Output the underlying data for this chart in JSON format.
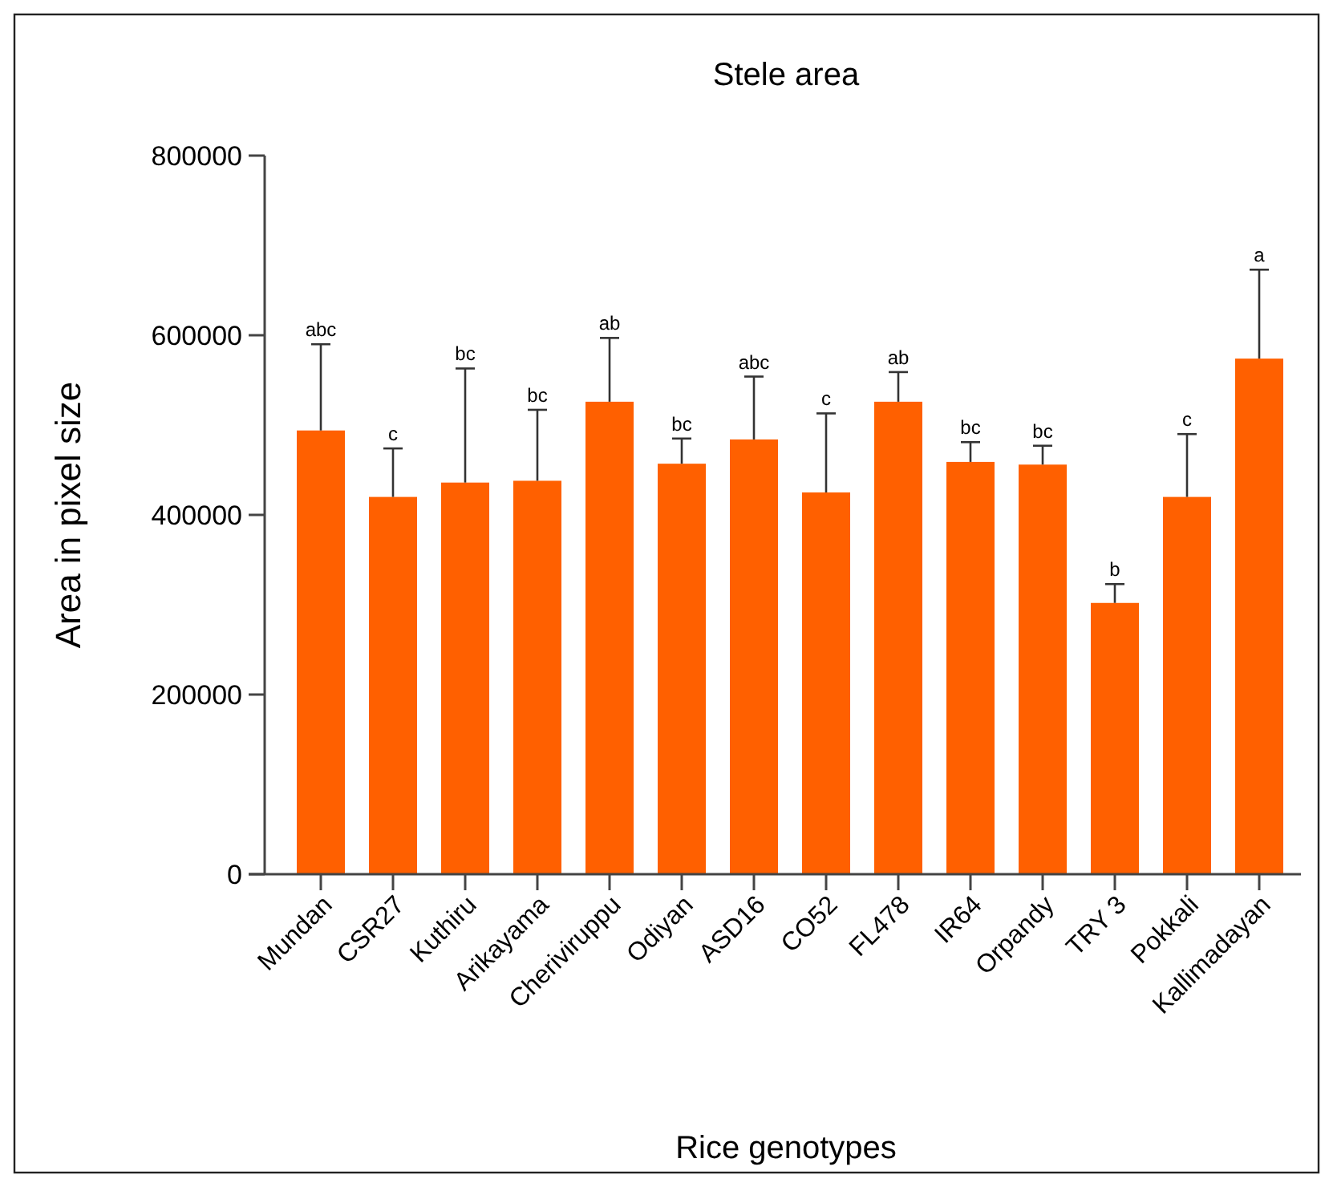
{
  "chart_data": {
    "type": "bar",
    "title": "Stele area",
    "xlabel": "Rice genotypes",
    "ylabel": "Area in pixel size",
    "categories": [
      "Mundan",
      "CSR27",
      "Kuthiru",
      "Arikayama",
      "Cheriviruppu",
      "Odiyan",
      "ASD16",
      "CO52",
      "FL478",
      "IR64",
      "Orpandy",
      "TRY 3",
      "Pokkali",
      "Kallimadayan"
    ],
    "values": [
      494000,
      420000,
      436000,
      438000,
      526000,
      457000,
      484000,
      425000,
      526000,
      459000,
      456000,
      302000,
      420000,
      574000
    ],
    "errors": [
      [
        494000,
        590000
      ],
      [
        420000,
        474000
      ],
      [
        436000,
        563000
      ],
      [
        438000,
        517000
      ],
      [
        526000,
        597000
      ],
      [
        457000,
        485000
      ],
      [
        484000,
        554000
      ],
      [
        425000,
        513000
      ],
      [
        526000,
        559000
      ],
      [
        459000,
        481000
      ],
      [
        456000,
        477000
      ],
      [
        302000,
        323000
      ],
      [
        420000,
        490000
      ],
      [
        574000,
        673000
      ]
    ],
    "color": "#ff6000",
    "ylim": [
      0,
      800000
    ],
    "yticks": [
      0,
      200000,
      400000,
      600000,
      800000
    ],
    "annotations": [
      {
        "text": "abc",
        "x": "Mundan",
        "y": 590000
      },
      {
        "text": "c",
        "x": "CSR27",
        "y": 474000
      },
      {
        "text": "bc",
        "x": "Kuthiru",
        "y": 563000
      },
      {
        "text": "bc",
        "x": "Arikayama",
        "y": 517000
      },
      {
        "text": "ab",
        "x": "Cheriviruppu",
        "y": 597000
      },
      {
        "text": "bc",
        "x": "Odiyan",
        "y": 485000
      },
      {
        "text": "abc",
        "x": "ASD16",
        "y": 554000
      },
      {
        "text": "c",
        "x": "CO52",
        "y": 513000
      },
      {
        "text": "ab",
        "x": "FL478",
        "y": 559000
      },
      {
        "text": "bc",
        "x": "IR64",
        "y": 481000
      },
      {
        "text": "bc",
        "x": "Orpandy",
        "y": 477000
      },
      {
        "text": "b",
        "x": "TRY 3",
        "y": 323000
      },
      {
        "text": "c",
        "x": "Pokkali",
        "y": 490000
      },
      {
        "text": "a",
        "x": "Kallimadayan",
        "y": 673000
      }
    ]
  }
}
